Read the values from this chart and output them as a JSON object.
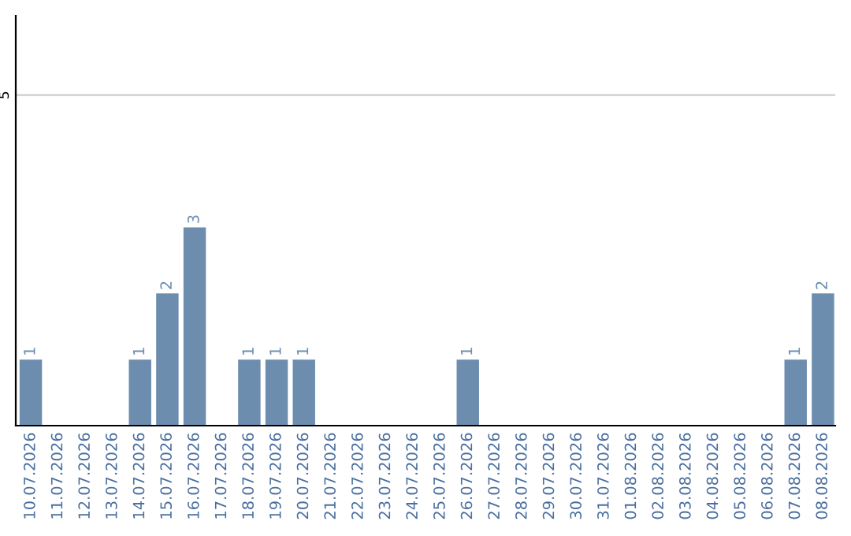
{
  "chart_data": {
    "type": "bar",
    "categories": [
      "10.07.2026",
      "11.07.2026",
      "12.07.2026",
      "13.07.2026",
      "14.07.2026",
      "15.07.2026",
      "16.07.2026",
      "17.07.2026",
      "18.07.2026",
      "19.07.2026",
      "20.07.2026",
      "21.07.2026",
      "22.07.2026",
      "23.07.2026",
      "24.07.2026",
      "25.07.2026",
      "26.07.2026",
      "27.07.2026",
      "28.07.2026",
      "29.07.2026",
      "30.07.2026",
      "31.07.2026",
      "01.08.2026",
      "02.08.2026",
      "03.08.2026",
      "04.08.2026",
      "05.08.2026",
      "06.08.2026",
      "07.08.2026",
      "08.08.2026"
    ],
    "values": [
      1,
      0,
      0,
      0,
      1,
      2,
      3,
      0,
      1,
      1,
      1,
      0,
      0,
      0,
      0,
      0,
      1,
      0,
      0,
      0,
      0,
      0,
      0,
      0,
      0,
      0,
      0,
      0,
      1,
      2
    ],
    "value_labels": [
      "1",
      null,
      null,
      null,
      "1",
      "2",
      "3",
      null,
      "1",
      "1",
      "1",
      null,
      null,
      null,
      null,
      null,
      "1",
      null,
      null,
      null,
      null,
      null,
      null,
      null,
      null,
      null,
      null,
      null,
      "1",
      "2"
    ],
    "color": "#6d8daf",
    "ylim": [
      0,
      6.2
    ],
    "yticks": [
      5
    ],
    "grid": "y"
  }
}
